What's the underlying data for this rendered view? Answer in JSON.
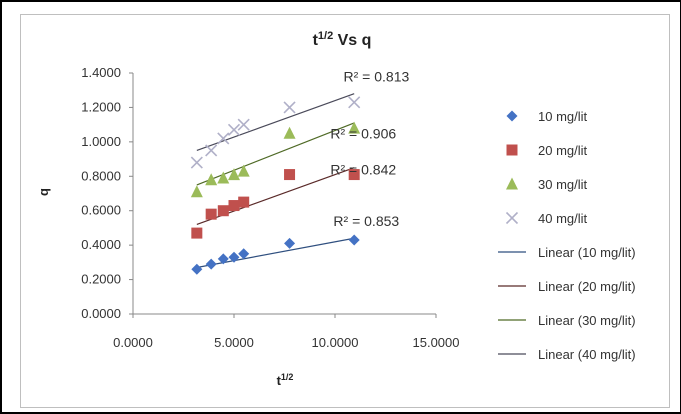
{
  "chart_data": {
    "type": "scatter",
    "title_base": "t",
    "title_sup": "1/2",
    "title_rest": " Vs q",
    "xlabel_base": "t",
    "xlabel_sup": "1/2",
    "ylabel": "q",
    "xlim": [
      0,
      15
    ],
    "ylim": [
      0,
      1.4
    ],
    "xticks": [
      0,
      5,
      10,
      15
    ],
    "yticks": [
      0,
      0.2,
      0.4,
      0.6,
      0.8,
      1.0,
      1.2,
      1.4
    ],
    "xtick_labels": [
      "0.0000",
      "5.0000",
      "10.0000",
      "15.0000"
    ],
    "ytick_labels": [
      "0.0000",
      "0.2000",
      "0.4000",
      "0.6000",
      "0.8000",
      "1.0000",
      "1.2000",
      "1.4000"
    ],
    "grid": false,
    "legend_position": "right",
    "series": [
      {
        "name": "10 mg/lit",
        "marker": "diamond",
        "color": "#4472C4",
        "x": [
          3.16,
          3.87,
          4.47,
          5.0,
          5.48,
          7.75,
          10.95
        ],
        "y": [
          0.26,
          0.29,
          0.32,
          0.33,
          0.35,
          0.41,
          0.43
        ],
        "trend": {
          "name": "Linear (10 mg/lit)",
          "x": [
            3.16,
            10.95
          ],
          "y": [
            0.27,
            0.44
          ],
          "color": "#2f4f7f"
        },
        "r2_label": "R² = 0.853",
        "r2_at": [
          11.55,
          0.51
        ]
      },
      {
        "name": "20 mg/lit",
        "marker": "square",
        "color": "#C0504D",
        "x": [
          3.16,
          3.87,
          4.47,
          5.0,
          5.48,
          7.75,
          10.95
        ],
        "y": [
          0.47,
          0.58,
          0.6,
          0.63,
          0.65,
          0.81,
          0.81
        ],
        "trend": {
          "name": "Linear (20 mg/lit)",
          "x": [
            3.16,
            10.95
          ],
          "y": [
            0.52,
            0.85
          ],
          "color": "#5a2a29"
        },
        "r2_label": "R² = 0.842",
        "r2_at": [
          11.4,
          0.81
        ]
      },
      {
        "name": "30 mg/lit",
        "marker": "triangle",
        "color": "#9BBB59",
        "x": [
          3.16,
          3.87,
          4.47,
          5.0,
          5.48,
          7.75,
          10.95
        ],
        "y": [
          0.71,
          0.78,
          0.79,
          0.81,
          0.83,
          1.05,
          1.08
        ],
        "trend": {
          "name": "Linear (30 mg/lit)",
          "x": [
            3.16,
            10.95
          ],
          "y": [
            0.75,
            1.11
          ],
          "color": "#4f6a26"
        },
        "r2_label": "R² = 0.906",
        "r2_at": [
          11.4,
          1.02
        ]
      },
      {
        "name": "40 mg/lit",
        "marker": "x",
        "color": "#B0B0C8",
        "x": [
          3.16,
          3.87,
          4.47,
          5.0,
          5.48,
          7.75,
          10.95
        ],
        "y": [
          0.88,
          0.95,
          1.02,
          1.07,
          1.1,
          1.2,
          1.23
        ],
        "trend": {
          "name": "Linear (40 mg/lit)",
          "x": [
            3.16,
            10.95
          ],
          "y": [
            0.95,
            1.28
          ],
          "color": "#4a4a5a"
        },
        "r2_label": "R² = 0.813",
        "r2_at": [
          12.05,
          1.35
        ]
      }
    ]
  }
}
